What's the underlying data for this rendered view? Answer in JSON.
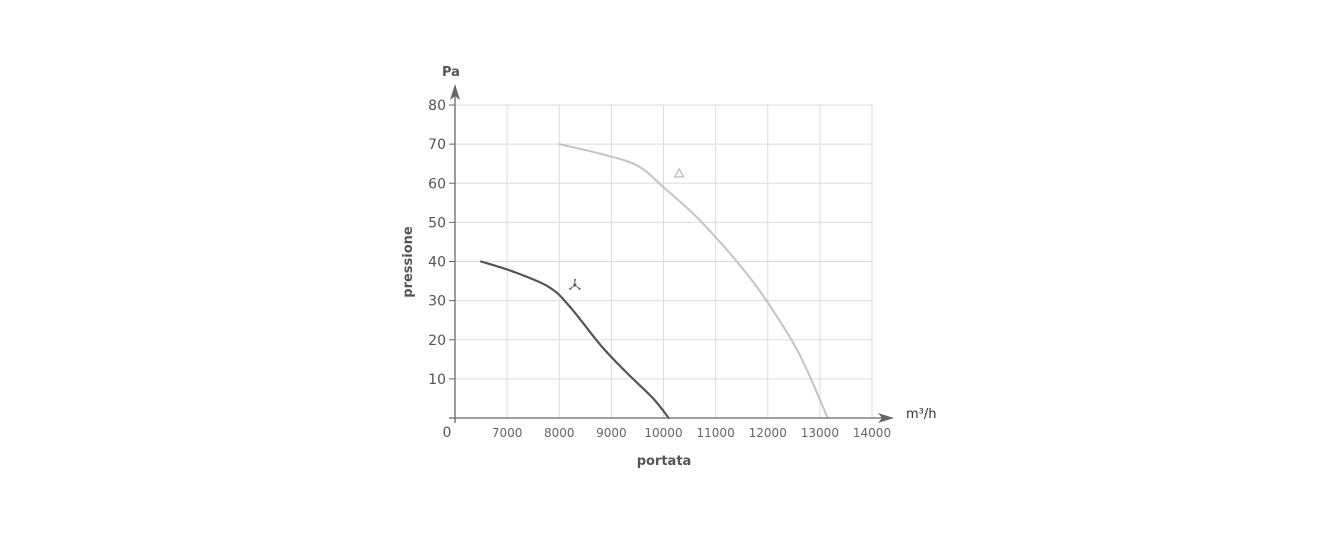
{
  "chart_data": {
    "type": "line",
    "xlabel": "portata",
    "ylabel": "pressione",
    "x_unit": "m³/h",
    "y_unit": "Pa",
    "origin_label": "0",
    "xlim": [
      6000,
      14000
    ],
    "ylim": [
      0,
      80
    ],
    "x_ticks": [
      7000,
      8000,
      9000,
      10000,
      11000,
      12000,
      13000,
      14000
    ],
    "y_ticks": [
      10,
      20,
      30,
      40,
      50,
      60,
      70,
      80
    ],
    "grid": true,
    "colors": {
      "dark_series": "#555555",
      "light_series": "#c4c4c4",
      "grid": "#dddddd",
      "axis": "#666666"
    },
    "series": [
      {
        "marker_icon": "fan-icon",
        "color": "#555555",
        "x": [
          6500,
          7100,
          7800,
          8200,
          8800,
          9300,
          9800,
          10100
        ],
        "y": [
          40,
          37.5,
          33.5,
          28.5,
          18.5,
          11.5,
          5,
          0
        ]
      },
      {
        "marker_icon": "triangle-outline-icon",
        "color": "#c4c4c4",
        "x": [
          8000,
          8800,
          9500,
          10000,
          10700,
          11500,
          12000,
          12600,
          13150
        ],
        "y": [
          70,
          67.5,
          64.5,
          59,
          50.5,
          38.5,
          29.5,
          16.5,
          0
        ]
      }
    ],
    "markers": [
      {
        "icon": "fan-icon",
        "x": 8300,
        "y": 34,
        "color": "#555555"
      },
      {
        "icon": "triangle-outline-icon",
        "x": 10300,
        "y": 62.5,
        "color": "#b5b5b5"
      }
    ]
  }
}
